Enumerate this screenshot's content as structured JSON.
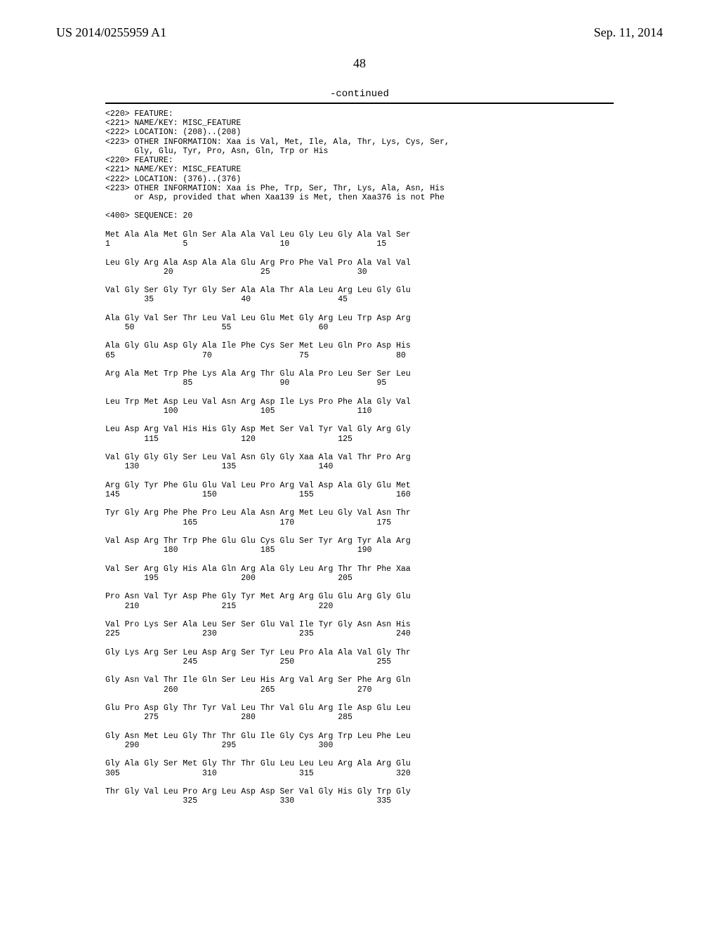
{
  "header": {
    "pubnum": "US 2014/0255959 A1",
    "pubdate": "Sep. 11, 2014",
    "pagenum": "48",
    "continued": "-continued"
  },
  "feature1": {
    "l1": "<220> FEATURE:",
    "l2": "<221> NAME/KEY: MISC_FEATURE",
    "l3": "<222> LOCATION: (208)..(208)",
    "l4": "<223> OTHER INFORMATION: Xaa is Val, Met, Ile, Ala, Thr, Lys, Cys, Ser,",
    "l5": "      Gly, Glu, Tyr, Pro, Asn, Gln, Trp or His"
  },
  "feature2": {
    "l1": "<220> FEATURE:",
    "l2": "<221> NAME/KEY: MISC_FEATURE",
    "l3": "<222> LOCATION: (376)..(376)",
    "l4": "<223> OTHER INFORMATION: Xaa is Phe, Trp, Ser, Thr, Lys, Ala, Asn, His",
    "l5": "      or Asp, provided that when Xaa139 is Met, then Xaa376 is not Phe"
  },
  "seqhdr": "<400> SEQUENCE: 20",
  "rows": [
    {
      "aa": "Met Ala Ala Met Gln Ser Ala Ala Val Leu Gly Leu Gly Ala Val Ser",
      "num": "1               5                   10                  15"
    },
    {
      "aa": "Leu Gly Arg Ala Asp Ala Ala Glu Arg Pro Phe Val Pro Ala Val Val",
      "num": "            20                  25                  30"
    },
    {
      "aa": "Val Gly Ser Gly Tyr Gly Ser Ala Ala Thr Ala Leu Arg Leu Gly Glu",
      "num": "        35                  40                  45"
    },
    {
      "aa": "Ala Gly Val Ser Thr Leu Val Leu Glu Met Gly Arg Leu Trp Asp Arg",
      "num": "    50                  55                  60"
    },
    {
      "aa": "Ala Gly Glu Asp Gly Ala Ile Phe Cys Ser Met Leu Gln Pro Asp His",
      "num": "65                  70                  75                  80"
    },
    {
      "aa": "Arg Ala Met Trp Phe Lys Ala Arg Thr Glu Ala Pro Leu Ser Ser Leu",
      "num": "                85                  90                  95"
    },
    {
      "aa": "Leu Trp Met Asp Leu Val Asn Arg Asp Ile Lys Pro Phe Ala Gly Val",
      "num": "            100                 105                 110"
    },
    {
      "aa": "Leu Asp Arg Val His His Gly Asp Met Ser Val Tyr Val Gly Arg Gly",
      "num": "        115                 120                 125"
    },
    {
      "aa": "Val Gly Gly Gly Ser Leu Val Asn Gly Gly Xaa Ala Val Thr Pro Arg",
      "num": "    130                 135                 140"
    },
    {
      "aa": "Arg Gly Tyr Phe Glu Glu Val Leu Pro Arg Val Asp Ala Gly Glu Met",
      "num": "145                 150                 155                 160"
    },
    {
      "aa": "Tyr Gly Arg Phe Phe Pro Leu Ala Asn Arg Met Leu Gly Val Asn Thr",
      "num": "                165                 170                 175"
    },
    {
      "aa": "Val Asp Arg Thr Trp Phe Glu Glu Cys Glu Ser Tyr Arg Tyr Ala Arg",
      "num": "            180                 185                 190"
    },
    {
      "aa": "Val Ser Arg Gly His Ala Gln Arg Ala Gly Leu Arg Thr Thr Phe Xaa",
      "num": "        195                 200                 205"
    },
    {
      "aa": "Pro Asn Val Tyr Asp Phe Gly Tyr Met Arg Arg Glu Glu Arg Gly Glu",
      "num": "    210                 215                 220"
    },
    {
      "aa": "Val Pro Lys Ser Ala Leu Ser Ser Glu Val Ile Tyr Gly Asn Asn His",
      "num": "225                 230                 235                 240"
    },
    {
      "aa": "Gly Lys Arg Ser Leu Asp Arg Ser Tyr Leu Pro Ala Ala Val Gly Thr",
      "num": "                245                 250                 255"
    },
    {
      "aa": "Gly Asn Val Thr Ile Gln Ser Leu His Arg Val Arg Ser Phe Arg Gln",
      "num": "            260                 265                 270"
    },
    {
      "aa": "Glu Pro Asp Gly Thr Tyr Val Leu Thr Val Glu Arg Ile Asp Glu Leu",
      "num": "        275                 280                 285"
    },
    {
      "aa": "Gly Asn Met Leu Gly Thr Thr Glu Ile Gly Cys Arg Trp Leu Phe Leu",
      "num": "    290                 295                 300"
    },
    {
      "aa": "Gly Ala Gly Ser Met Gly Thr Thr Glu Leu Leu Leu Arg Ala Arg Glu",
      "num": "305                 310                 315                 320"
    },
    {
      "aa": "Thr Gly Val Leu Pro Arg Leu Asp Asp Ser Val Gly His Gly Trp Gly",
      "num": "                325                 330                 335"
    }
  ]
}
